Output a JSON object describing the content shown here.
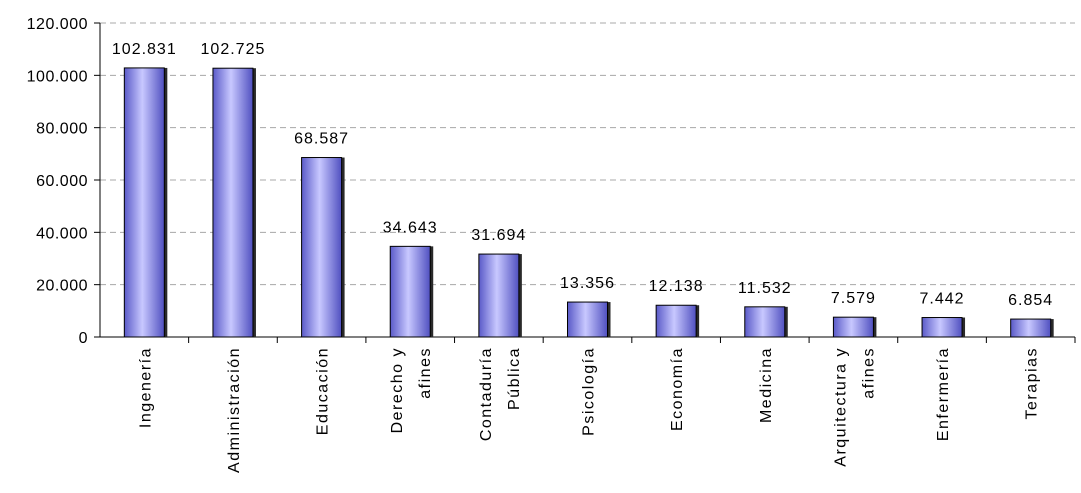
{
  "chart_data": {
    "type": "bar",
    "categories": [
      [
        "Ingenería"
      ],
      [
        "Administración"
      ],
      [
        "Educación"
      ],
      [
        "Derecho y",
        "afines"
      ],
      [
        "Contaduría",
        "Pública"
      ],
      [
        "Psicología"
      ],
      [
        "Economía"
      ],
      [
        "Medicina"
      ],
      [
        "Arquitectura y",
        "afines"
      ],
      [
        "Enfermería"
      ],
      [
        "Terapias"
      ]
    ],
    "values": [
      102831,
      102725,
      68587,
      34643,
      31694,
      13356,
      12138,
      11532,
      7579,
      7442,
      6854
    ],
    "data_labels": [
      "102.831",
      "102.725",
      "68.587",
      "34.643",
      "31.694",
      "13.356",
      "12.138",
      "11.532",
      "7.579",
      "7.442",
      "6.854"
    ],
    "yticks": [
      "0",
      "20.000",
      "40.000",
      "60.000",
      "80.000",
      "100.000",
      "120.000"
    ],
    "ylim": [
      0,
      120000
    ],
    "title": "",
    "xlabel": "",
    "ylabel": "",
    "grid": true,
    "bar_color": "#9a9af0",
    "bar_dark": "#4a4ab8",
    "bar_light": "#d8d8ff"
  }
}
